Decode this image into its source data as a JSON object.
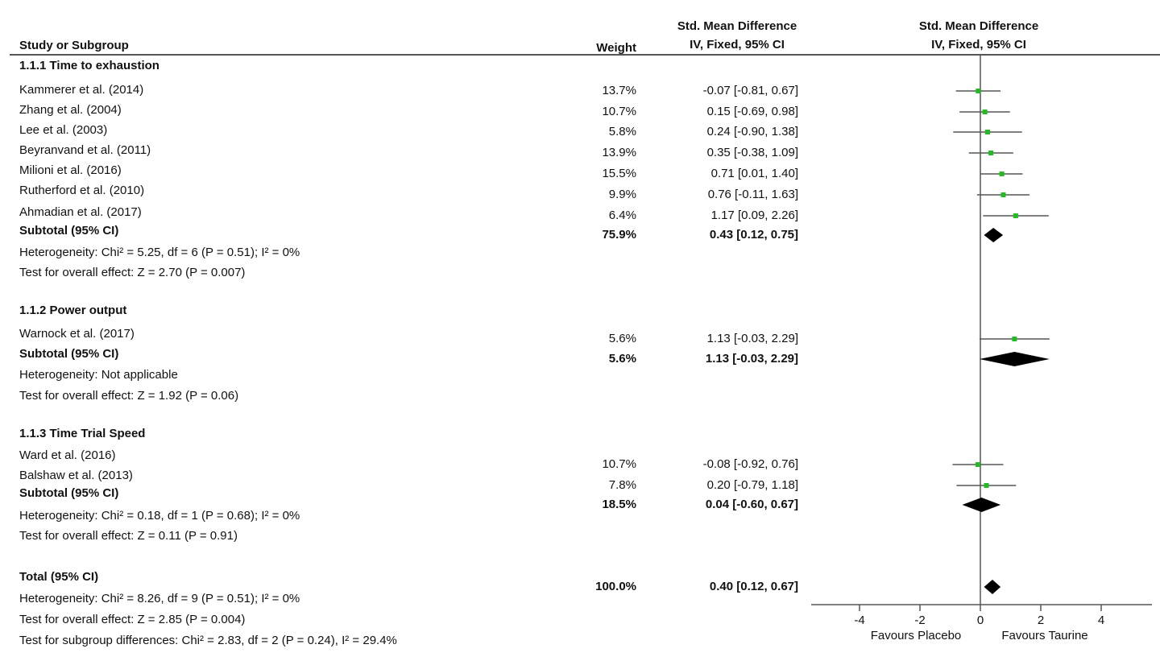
{
  "header": {
    "study_col": "Study or Subgroup",
    "weight_col": "Weight",
    "smd_title_left": "Std. Mean Difference",
    "smd_sub_left": "IV, Fixed, 95% CI",
    "smd_title_right": "Std. Mean Difference",
    "smd_sub_right": "IV, Fixed, 95% CI"
  },
  "rows": [
    {
      "kind": "group",
      "label": "1.1.1 Time to exhaustion"
    },
    {
      "kind": "study",
      "label": "Kammerer et al. (2014)",
      "weight": "13.7%",
      "ci_text": "-0.07 [-0.81, 0.67]",
      "est": -0.07,
      "lo": -0.81,
      "hi": 0.67
    },
    {
      "kind": "study",
      "label": "Zhang et al. (2004)",
      "weight": "10.7%",
      "ci_text": "0.15 [-0.69, 0.98]",
      "est": 0.15,
      "lo": -0.69,
      "hi": 0.98
    },
    {
      "kind": "study",
      "label": "Lee et al. (2003)",
      "weight": "5.8%",
      "ci_text": "0.24 [-0.90, 1.38]",
      "est": 0.24,
      "lo": -0.9,
      "hi": 1.38
    },
    {
      "kind": "study",
      "label": "Beyranvand et al. (2011)",
      "weight": "13.9%",
      "ci_text": "0.35 [-0.38, 1.09]",
      "est": 0.35,
      "lo": -0.38,
      "hi": 1.09
    },
    {
      "kind": "study",
      "label": "Milioni et al. (2016)",
      "weight": "15.5%",
      "ci_text": "0.71 [0.01, 1.40]",
      "est": 0.71,
      "lo": 0.01,
      "hi": 1.4
    },
    {
      "kind": "study",
      "label": "Rutherford et al. (2010)",
      "weight": "9.9%",
      "ci_text": "0.76 [-0.11, 1.63]",
      "est": 0.76,
      "lo": -0.11,
      "hi": 1.63
    },
    {
      "kind": "study",
      "label": "Ahmadian et al. (2017)",
      "weight": "6.4%",
      "ci_text": "1.17 [0.09, 2.26]",
      "est": 1.17,
      "lo": 0.09,
      "hi": 2.26
    },
    {
      "kind": "subtotal",
      "label": "Subtotal (95% CI)",
      "weight": "75.9%",
      "ci_text": "0.43 [0.12, 0.75]",
      "est": 0.43,
      "lo": 0.12,
      "hi": 0.75
    },
    {
      "kind": "note",
      "label": "Heterogeneity: Chi² = 5.25, df = 6 (P = 0.51); I² = 0%"
    },
    {
      "kind": "note",
      "label": "Test for overall effect: Z = 2.70 (P = 0.007)"
    },
    {
      "kind": "group",
      "label": "1.1.2 Power output"
    },
    {
      "kind": "study",
      "label": "Warnock et al. (2017)",
      "weight": "5.6%",
      "ci_text": "1.13 [-0.03, 2.29]",
      "est": 1.13,
      "lo": -0.03,
      "hi": 2.29
    },
    {
      "kind": "subtotal",
      "label": "Subtotal (95% CI)",
      "weight": "5.6%",
      "ci_text": "1.13 [-0.03, 2.29]",
      "est": 1.13,
      "lo": -0.03,
      "hi": 2.29
    },
    {
      "kind": "note",
      "label": "Heterogeneity: Not applicable"
    },
    {
      "kind": "note",
      "label": "Test for overall effect: Z = 1.92 (P = 0.06)"
    },
    {
      "kind": "group",
      "label": "1.1.3 Time Trial Speed"
    },
    {
      "kind": "study",
      "label": "Ward et al. (2016)",
      "weight": "10.7%",
      "ci_text": "-0.08 [-0.92, 0.76]",
      "est": -0.08,
      "lo": -0.92,
      "hi": 0.76
    },
    {
      "kind": "study",
      "label": "Balshaw et al. (2013)",
      "weight": "7.8%",
      "ci_text": "0.20 [-0.79, 1.18]",
      "est": 0.2,
      "lo": -0.79,
      "hi": 1.18
    },
    {
      "kind": "subtotal",
      "label": "Subtotal (95% CI)",
      "weight": "18.5%",
      "ci_text": "0.04 [-0.60, 0.67]",
      "est": 0.04,
      "lo": -0.6,
      "hi": 0.67
    },
    {
      "kind": "note",
      "label": "Heterogeneity: Chi² = 0.18, df = 1 (P = 0.68); I² = 0%"
    },
    {
      "kind": "note",
      "label": "Test for overall effect: Z = 0.11 (P = 0.91)"
    },
    {
      "kind": "total",
      "label": "Total (95% CI)",
      "weight": "100.0%",
      "ci_text": "0.40 [0.12, 0.67]",
      "est": 0.4,
      "lo": 0.12,
      "hi": 0.67
    },
    {
      "kind": "note",
      "label": "Heterogeneity: Chi² = 8.26, df = 9 (P = 0.51); I² = 0%"
    },
    {
      "kind": "note",
      "label": "Test for overall effect: Z = 2.85 (P = 0.004)"
    },
    {
      "kind": "note",
      "label": "Test for subgroup differences: Chi² = 2.83, df = 2 (P = 0.24), I² = 29.4%"
    }
  ],
  "chart_data": {
    "type": "forest",
    "x_ticks": [
      -4,
      -2,
      0,
      2,
      4
    ],
    "x_tick_labels": [
      "-4",
      "-2",
      "0",
      "2",
      "4"
    ],
    "xlim": [
      -5.6,
      5.6
    ],
    "favours_left": "Favours Placebo",
    "favours_right": "Favours Taurine",
    "point_color": "#22bb22",
    "diamond_color": "#000000",
    "studies": [
      {
        "name": "Kammerer et al. (2014)",
        "est": -0.07,
        "lo": -0.81,
        "hi": 0.67
      },
      {
        "name": "Zhang et al. (2004)",
        "est": 0.15,
        "lo": -0.69,
        "hi": 0.98
      },
      {
        "name": "Lee et al. (2003)",
        "est": 0.24,
        "lo": -0.9,
        "hi": 1.38
      },
      {
        "name": "Beyranvand et al. (2011)",
        "est": 0.35,
        "lo": -0.38,
        "hi": 1.09
      },
      {
        "name": "Milioni et al. (2016)",
        "est": 0.71,
        "lo": 0.01,
        "hi": 1.4
      },
      {
        "name": "Rutherford et al. (2010)",
        "est": 0.76,
        "lo": -0.11,
        "hi": 1.63
      },
      {
        "name": "Ahmadian et al. (2017)",
        "est": 1.17,
        "lo": 0.09,
        "hi": 2.26
      },
      {
        "name": "Warnock et al. (2017)",
        "est": 1.13,
        "lo": -0.03,
        "hi": 2.29
      },
      {
        "name": "Ward et al. (2016)",
        "est": -0.08,
        "lo": -0.92,
        "hi": 0.76
      },
      {
        "name": "Balshaw et al. (2013)",
        "est": 0.2,
        "lo": -0.79,
        "hi": 1.18
      }
    ],
    "pooled": [
      {
        "name": "Subtotal 1.1.1",
        "est": 0.43,
        "lo": 0.12,
        "hi": 0.75
      },
      {
        "name": "Subtotal 1.1.2",
        "est": 1.13,
        "lo": -0.03,
        "hi": 2.29
      },
      {
        "name": "Subtotal 1.1.3",
        "est": 0.04,
        "lo": -0.6,
        "hi": 0.67
      },
      {
        "name": "Total",
        "est": 0.4,
        "lo": 0.12,
        "hi": 0.67
      }
    ]
  }
}
